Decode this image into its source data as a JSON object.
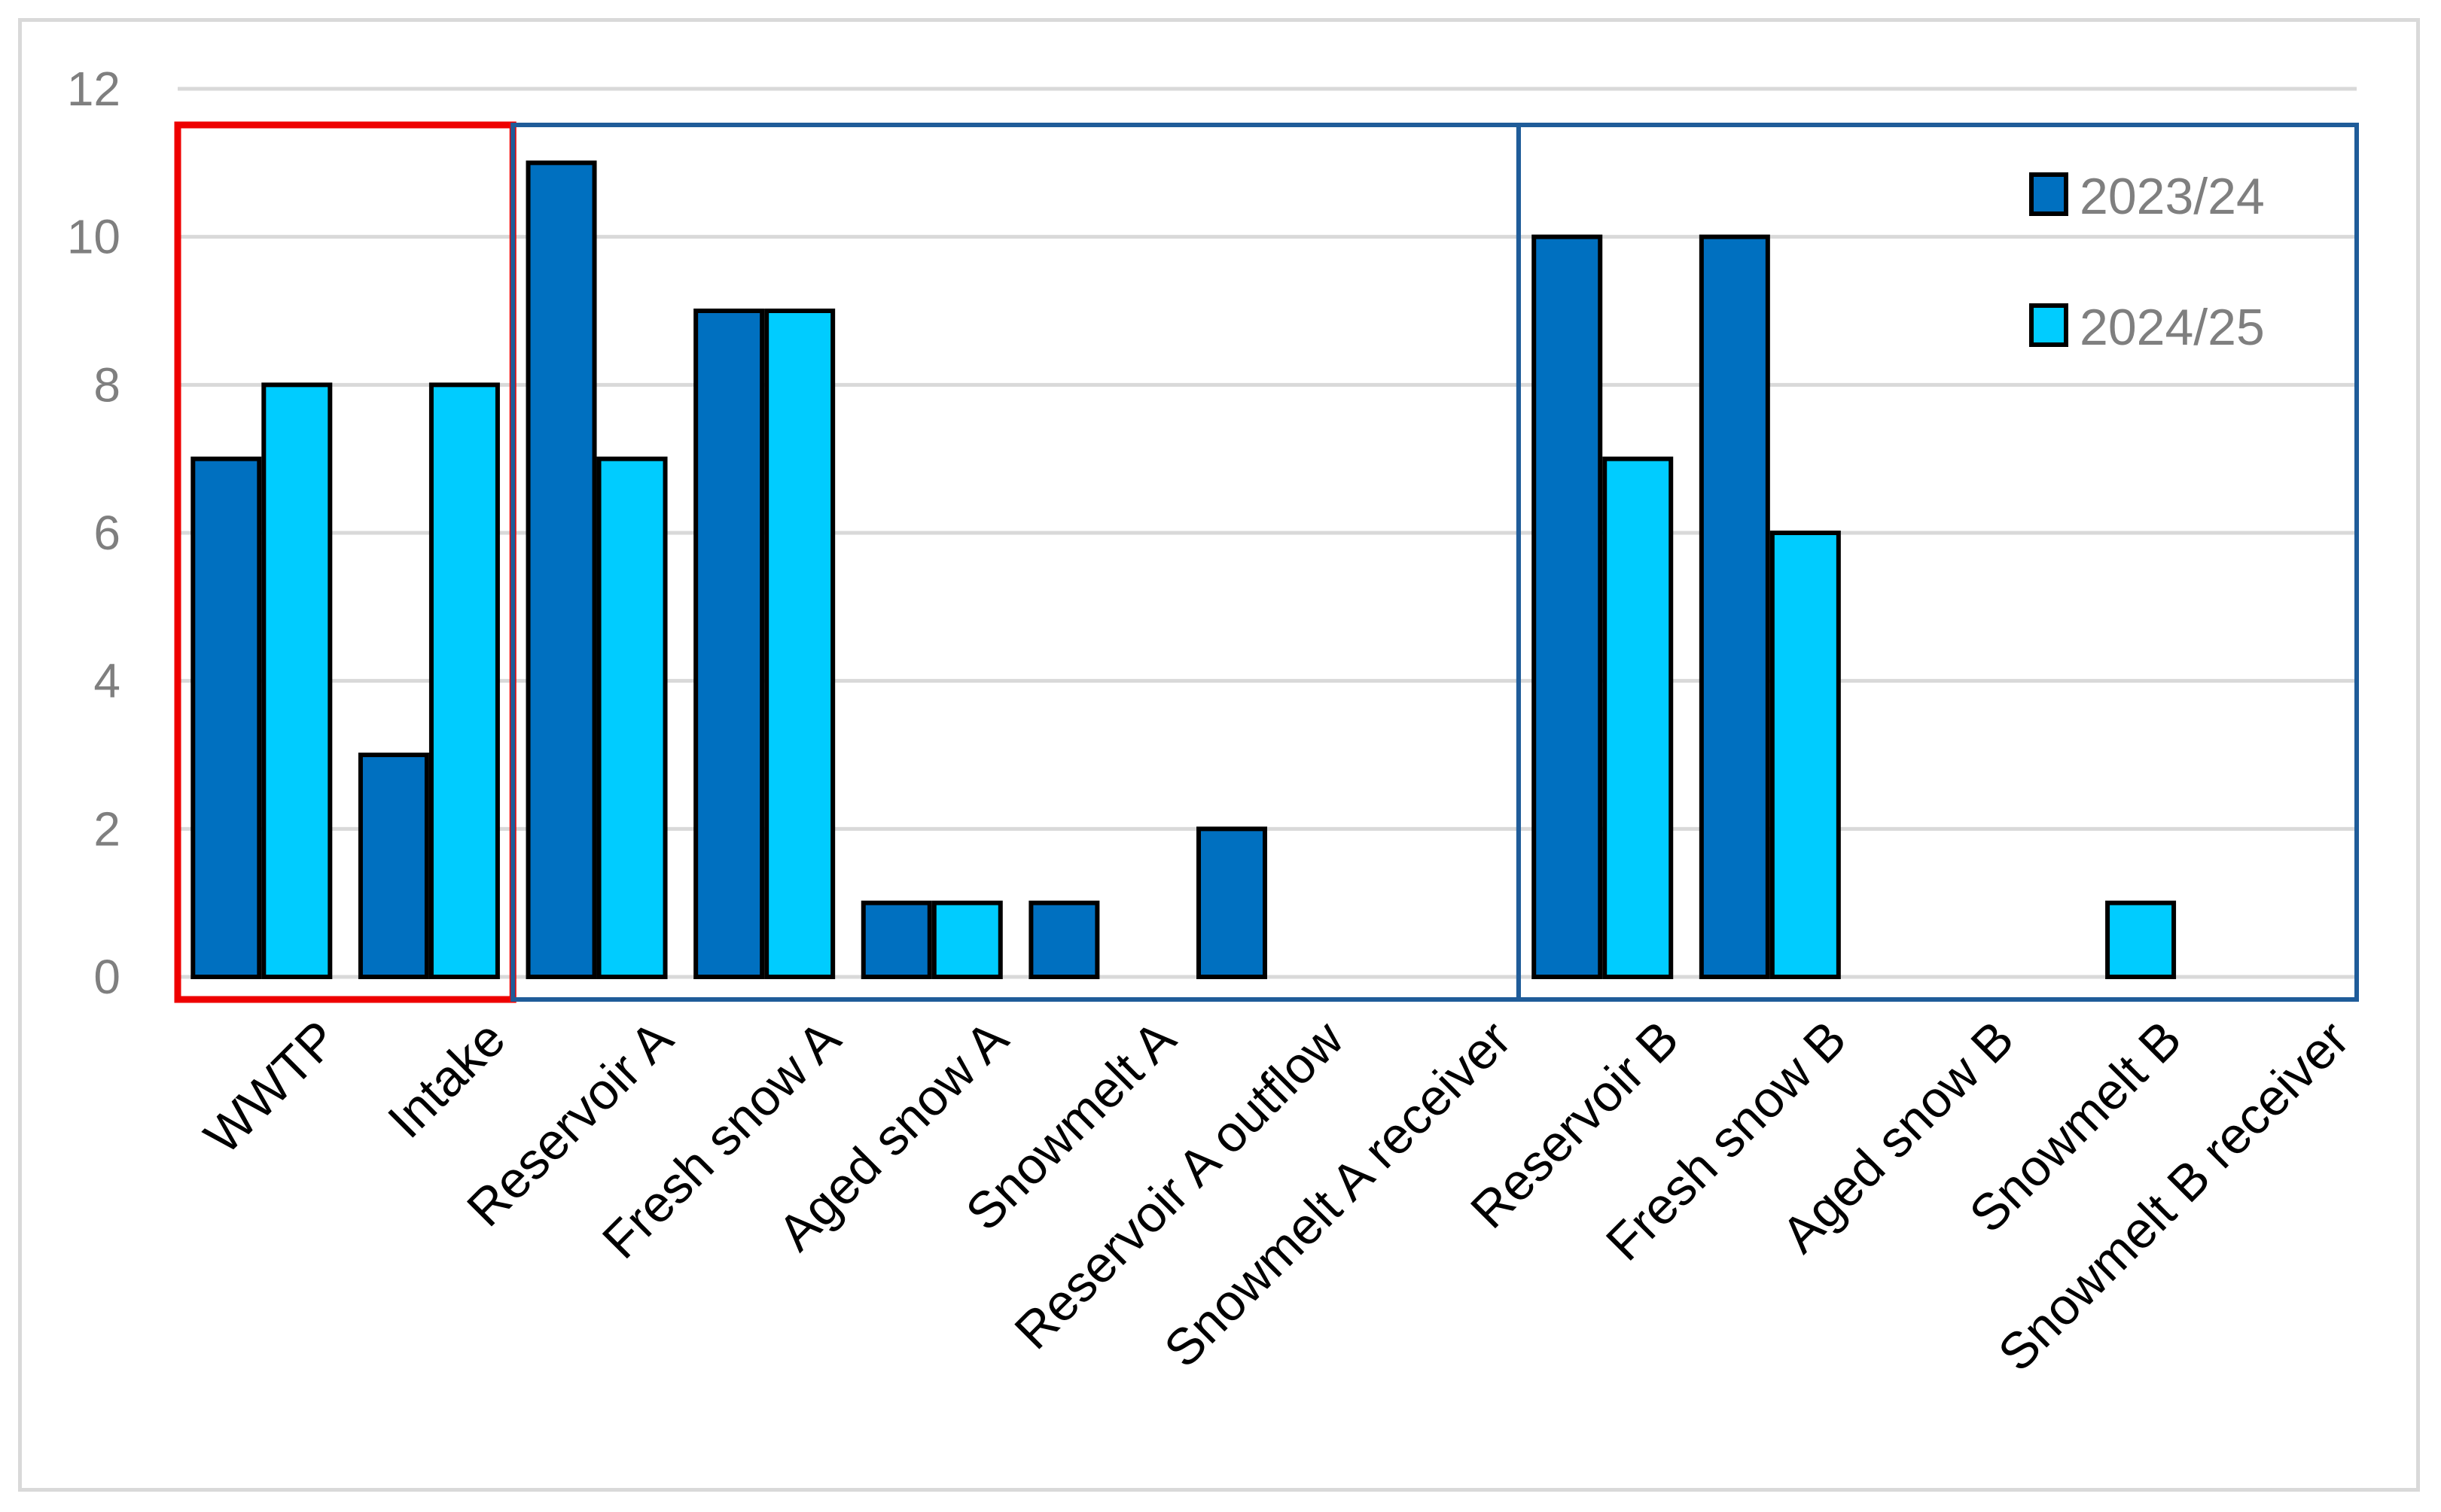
{
  "chart_data": {
    "type": "bar",
    "title": "",
    "xlabel": "",
    "ylabel": "",
    "ylim": [
      0,
      12
    ],
    "yticks": [
      0,
      2,
      4,
      6,
      8,
      10,
      12
    ],
    "grid": true,
    "legend_position": "top-right",
    "categories": [
      "WWTP",
      "Intake",
      "Reservoir A",
      "Fresh snow A",
      "Aged snow A",
      "Snowmelt A",
      "Reservoir A outflow",
      "Snowmelt A receiver",
      "Reservoir B",
      "Fresh snow B",
      "Aged snow B",
      "Snowmelt B",
      "Snowmelt B receiver"
    ],
    "series": [
      {
        "name": "2023/24",
        "color": "#0070c0",
        "values": [
          7,
          3,
          11,
          9,
          1,
          1,
          2,
          0,
          10,
          10,
          0,
          0,
          0
        ]
      },
      {
        "name": "2024/25",
        "color": "#00ccff",
        "values": [
          8,
          8,
          7,
          9,
          1,
          0,
          0,
          0,
          7,
          6,
          0,
          1,
          0
        ]
      }
    ],
    "group_boxes": [
      {
        "categories": [
          "WWTP",
          "Intake"
        ],
        "color": "#ee0000"
      },
      {
        "categories": [
          "Reservoir A",
          "Fresh snow A",
          "Aged snow A",
          "Snowmelt A",
          "Reservoir A outflow",
          "Snowmelt A receiver"
        ],
        "color": "#1f5c99"
      },
      {
        "categories": [
          "Reservoir B",
          "Fresh snow B",
          "Aged snow B",
          "Snowmelt B",
          "Snowmelt B receiver"
        ],
        "color": "#1f5c99"
      }
    ]
  }
}
